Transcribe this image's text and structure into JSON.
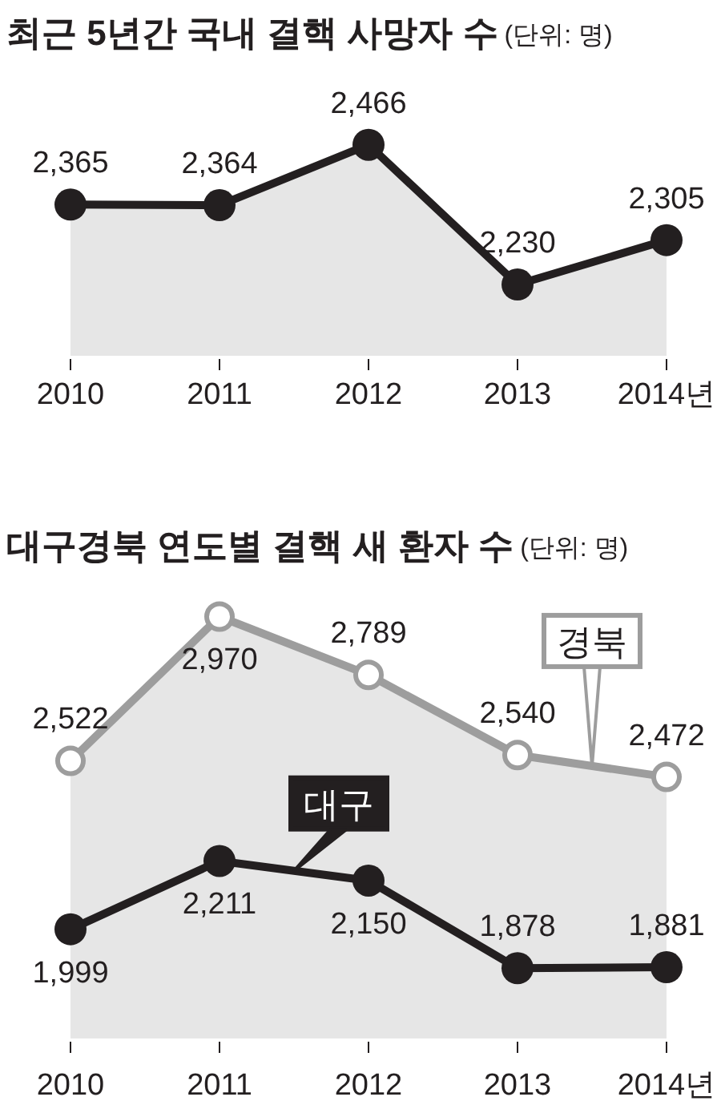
{
  "chart_data": [
    {
      "type": "area",
      "title": "최근 5년간 국내 결핵 사망자 수",
      "subtitle": "(단위: 명)",
      "categories": [
        "2010",
        "2011",
        "2012",
        "2013",
        "2014년"
      ],
      "series": [
        {
          "color": "#231f20",
          "values": [
            2365,
            2364,
            2466,
            2230,
            2305
          ],
          "value_labels": [
            "2,365",
            "2,364",
            "2,466",
            "2,230",
            "2,305"
          ]
        }
      ],
      "marker": "circle",
      "legend": false,
      "grid": false
    },
    {
      "type": "line",
      "title": "대구경북 연도별 결핵 새 환자 수",
      "subtitle": "(단위: 명)",
      "categories": [
        "2010",
        "2011",
        "2012",
        "2013",
        "2014년"
      ],
      "series": [
        {
          "name": "경북",
          "type": "area",
          "color": "#9d9d9d",
          "values": [
            2522,
            2970,
            2789,
            2540,
            2472
          ],
          "value_labels": [
            "2,522",
            "2,970",
            "2,789",
            "2,540",
            "2,472"
          ]
        },
        {
          "name": "대구",
          "type": "line",
          "color": "#231f20",
          "values": [
            1999,
            2211,
            2150,
            1878,
            1881
          ],
          "value_labels": [
            "1,999",
            "2,211",
            "2,150",
            "1,878",
            "1,881"
          ]
        }
      ],
      "marker": "circle",
      "legend": false,
      "grid": false
    }
  ]
}
